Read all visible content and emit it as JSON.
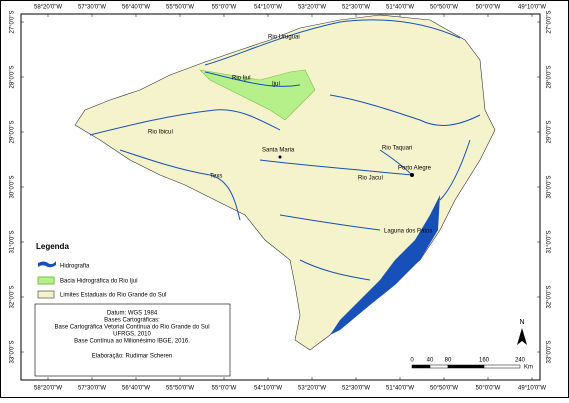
{
  "map": {
    "longitudes": [
      "58°20'0\"W",
      "57°30'0\"W",
      "56°40'0\"W",
      "55°50'0\"W",
      "55°0'0\"W",
      "54°10'0\"W",
      "53°20'0\"W",
      "52°30'0\"W",
      "51°40'0\"W",
      "50°50'0\"W",
      "50°0'0\"W",
      "49°10'0\"W"
    ],
    "latitudes": [
      "27°0'0\"S",
      "28°0'0\"S",
      "29°0'0\"S",
      "30°0'0\"S",
      "31°0'0\"S",
      "32°0'0\"S",
      "33°0'0\"S"
    ],
    "labels": [
      "Rio Uruguai",
      "Rio Ijuí",
      "Ijuí",
      "Rio Ibicuí",
      "Santa Maria",
      "Texs",
      "Rio Taquari",
      "Porto Alegre",
      "Rio Jacuí",
      "Laguna dos Patos"
    ],
    "legend": {
      "title": "Legenda",
      "items": [
        "Hidrografia",
        "Bacia Hidrográfica do Rio Ijuí",
        "Limites Estaduais do Rio Grande do Sul"
      ]
    },
    "info": [
      "Datum: WGS 1984",
      "Bases Cartográficas:",
      "Base Cartográfica Vetorial Contínua do Rio Grande do Sul",
      "UFRGS, 2010",
      "Base Contínua ao Milionésimo IBGE, 2016.",
      "Elaboração: Rudimar Scheren"
    ],
    "north": "N",
    "scale_bar": {
      "ticks": [
        0,
        40,
        80,
        160,
        240
      ],
      "unit": "Km"
    }
  }
}
